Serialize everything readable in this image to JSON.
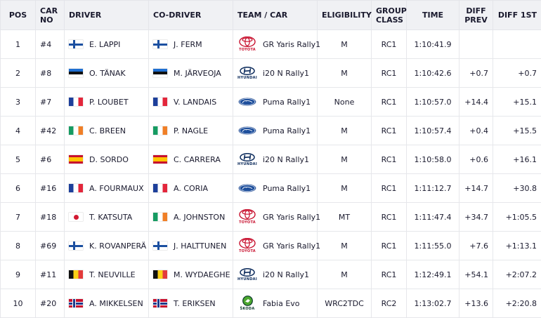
{
  "columns": {
    "pos": "POS",
    "car_no": "CAR\nNO",
    "driver": "DRIVER",
    "co_driver": "CO-DRIVER",
    "team_car": "TEAM / CAR",
    "eligibility": "ELIGIBILITY",
    "group_class": "GROUP\nCLASS",
    "time": "TIME",
    "diff_prev": "DIFF\nPREV",
    "diff_1st": "DIFF 1ST"
  },
  "rows": [
    {
      "pos": "1",
      "car_no": "#4",
      "driver": "E. LAPPI",
      "driver_flag": "fi",
      "co_driver": "J. FERM",
      "co_flag": "fi",
      "maker": "toyota",
      "maker_caption": "TOYOTA",
      "car": "GR Yaris Rally1",
      "eligibility": "M",
      "group_class": "RC1",
      "time": "1:10:41.9",
      "diff_prev": "",
      "diff_1st": ""
    },
    {
      "pos": "2",
      "car_no": "#8",
      "driver": "O. TÄNAK",
      "driver_flag": "ee",
      "co_driver": "M. JÄRVEOJA",
      "co_flag": "ee",
      "maker": "hyundai",
      "maker_caption": "HYUNDAI",
      "car": "i20 N Rally1",
      "eligibility": "M",
      "group_class": "RC1",
      "time": "1:10:42.6",
      "diff_prev": "+0.7",
      "diff_1st": "+0.7"
    },
    {
      "pos": "3",
      "car_no": "#7",
      "driver": "P. LOUBET",
      "driver_flag": "fr",
      "co_driver": "V. LANDAIS",
      "co_flag": "fr",
      "maker": "ford",
      "maker_caption": "",
      "car": "Puma Rally1",
      "eligibility": "None",
      "group_class": "RC1",
      "time": "1:10:57.0",
      "diff_prev": "+14.4",
      "diff_1st": "+15.1"
    },
    {
      "pos": "4",
      "car_no": "#42",
      "driver": "C. BREEN",
      "driver_flag": "ie",
      "co_driver": "P. NAGLE",
      "co_flag": "ie",
      "maker": "ford",
      "maker_caption": "",
      "car": "Puma Rally1",
      "eligibility": "M",
      "group_class": "RC1",
      "time": "1:10:57.4",
      "diff_prev": "+0.4",
      "diff_1st": "+15.5"
    },
    {
      "pos": "5",
      "car_no": "#6",
      "driver": "D. SORDO",
      "driver_flag": "es",
      "co_driver": "C. CARRERA",
      "co_flag": "es",
      "maker": "hyundai",
      "maker_caption": "HYUNDAI",
      "car": "i20 N Rally1",
      "eligibility": "M",
      "group_class": "RC1",
      "time": "1:10:58.0",
      "diff_prev": "+0.6",
      "diff_1st": "+16.1"
    },
    {
      "pos": "6",
      "car_no": "#16",
      "driver": "A. FOURMAUX",
      "driver_flag": "fr",
      "co_driver": "A. CORIA",
      "co_flag": "fr",
      "maker": "ford",
      "maker_caption": "",
      "car": "Puma Rally1",
      "eligibility": "M",
      "group_class": "RC1",
      "time": "1:11:12.7",
      "diff_prev": "+14.7",
      "diff_1st": "+30.8"
    },
    {
      "pos": "7",
      "car_no": "#18",
      "driver": "T. KATSUTA",
      "driver_flag": "jp",
      "co_driver": "A. JOHNSTON",
      "co_flag": "ie",
      "maker": "toyota",
      "maker_caption": "TOYOTA",
      "car": "GR Yaris Rally1",
      "eligibility": "MT",
      "group_class": "RC1",
      "time": "1:11:47.4",
      "diff_prev": "+34.7",
      "diff_1st": "+1:05.5"
    },
    {
      "pos": "8",
      "car_no": "#69",
      "driver": "K. ROVANPERÄ",
      "driver_flag": "fi",
      "co_driver": "J. HALTTUNEN",
      "co_flag": "fi",
      "maker": "toyota",
      "maker_caption": "TOYOTA",
      "car": "GR Yaris Rally1",
      "eligibility": "M",
      "group_class": "RC1",
      "time": "1:11:55.0",
      "diff_prev": "+7.6",
      "diff_1st": "+1:13.1"
    },
    {
      "pos": "9",
      "car_no": "#11",
      "driver": "T. NEUVILLE",
      "driver_flag": "be",
      "co_driver": "M. WYDAEGHE",
      "co_flag": "be",
      "maker": "hyundai",
      "maker_caption": "HYUNDAI",
      "car": "i20 N Rally1",
      "eligibility": "M",
      "group_class": "RC1",
      "time": "1:12:49.1",
      "diff_prev": "+54.1",
      "diff_1st": "+2:07.2"
    },
    {
      "pos": "10",
      "car_no": "#20",
      "driver": "A. MIKKELSEN",
      "driver_flag": "no",
      "co_driver": "T. ERIKSEN",
      "co_flag": "no",
      "maker": "skoda",
      "maker_caption": "ŠKODA",
      "car": "Fabia Evo",
      "eligibility": "WRC2TDC",
      "group_class": "RC2",
      "time": "1:13:02.7",
      "diff_prev": "+13.6",
      "diff_1st": "+2:20.8"
    }
  ],
  "colors": {
    "header_bg": "#f0f1f4",
    "toyota_red": "#c8102e",
    "hyundai_navy": "#0b2a5b",
    "ford_blue": "#1e4f9c",
    "skoda_green": "#0e3a2f"
  }
}
